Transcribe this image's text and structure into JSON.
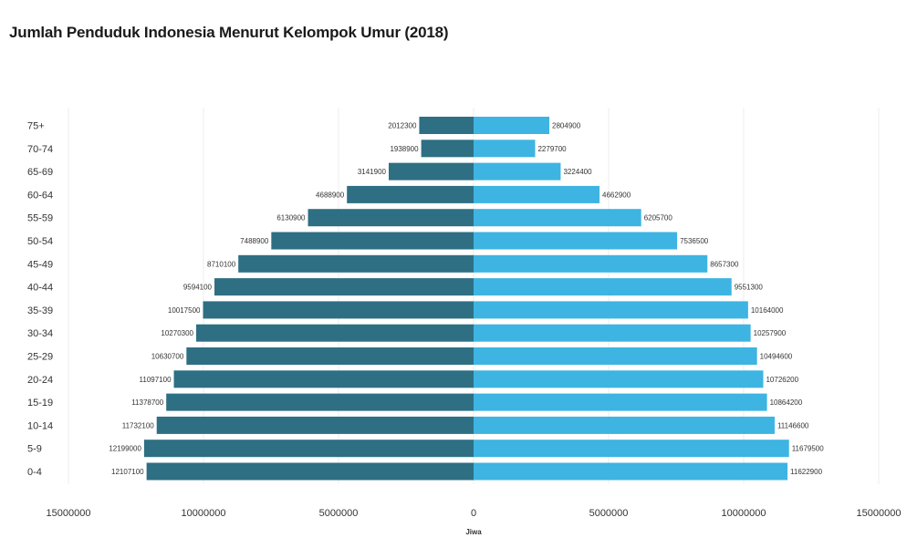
{
  "title": "Jumlah Penduduk Indonesia Menurut Kelompok Umur (2018)",
  "chart_data": {
    "type": "bar",
    "orientation": "horizontal",
    "layout": "population-pyramid",
    "title": "Jumlah Penduduk Indonesia Menurut Kelompok Umur (2018)",
    "xlabel": "Jiwa",
    "ylabel": "",
    "xlim": [
      -15000000,
      15000000
    ],
    "x_ticks": [
      -15000000,
      -10000000,
      -5000000,
      0,
      5000000,
      10000000,
      15000000
    ],
    "x_tick_labels": [
      "15000000",
      "10000000",
      "5000000",
      "0",
      "5000000",
      "10000000",
      "15000000"
    ],
    "grid": true,
    "legend": "none",
    "categories": [
      "75+",
      "70-74",
      "65-69",
      "60-64",
      "55-59",
      "50-54",
      "45-49",
      "40-44",
      "35-39",
      "30-34",
      "25-29",
      "20-24",
      "15-19",
      "10-14",
      "5-9",
      "0-4"
    ],
    "series": [
      {
        "color": "#2e6f83",
        "side": "left",
        "values": [
          2012300,
          1938900,
          3141900,
          4688900,
          6130900,
          7488900,
          8710100,
          9594100,
          10017500,
          10270300,
          10630700,
          11097100,
          11378700,
          11732100,
          12199000,
          12107100
        ],
        "labels": [
          "2012300",
          "1938900",
          "3141900",
          "4688900",
          "6130900",
          "7488900",
          "8710100",
          "9594100",
          "10017500",
          "10270300",
          "10630700",
          "11097100",
          "11378700",
          "11732100",
          "12199000",
          "12107100"
        ]
      },
      {
        "color": "#3db4e2",
        "side": "right",
        "values": [
          2804900,
          2279700,
          3224400,
          4662900,
          6205700,
          7536500,
          8657300,
          9551300,
          10164000,
          10257900,
          10494600,
          10726200,
          10864200,
          11146600,
          11679500,
          11622900
        ],
        "labels": [
          "2804900",
          "2279700",
          "3224400",
          "4662900",
          "6205700",
          "7536500",
          "8657300",
          "9551300",
          "10164000",
          "10257900",
          "10494600",
          "10726200",
          "10864200",
          "11146600",
          "11679500",
          "11622900"
        ]
      }
    ]
  }
}
